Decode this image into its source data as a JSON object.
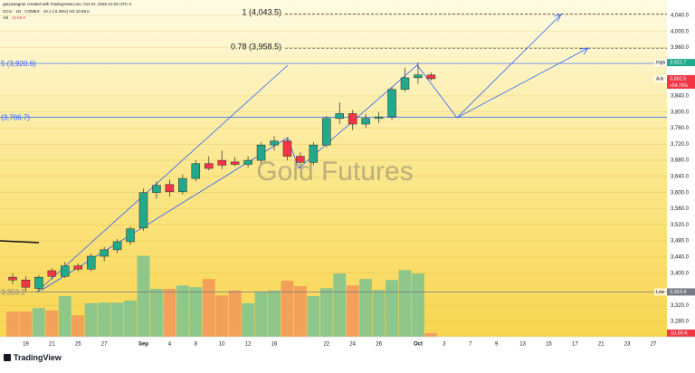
{
  "header": {
    "credit": "garyswagner created with TradingView.com, Oct 01, 2025 21:03 UTC-4",
    "symbol_line": "GC1! · 1D · COMEX · 10.1 (-0.26%) Vol 10.56 K",
    "vol_label": "Vol",
    "vol_value": "10.56 K"
  },
  "footer": {
    "logo": "TradingView"
  },
  "chart_data": {
    "type": "candlestick",
    "watermark": "Gold Futures",
    "categories": [
      null,
      "19",
      null,
      "21",
      null,
      "25",
      null,
      "27",
      null,
      null,
      "Sep",
      null,
      "4",
      null,
      "8",
      null,
      "10",
      null,
      "12",
      null,
      "16",
      null,
      null,
      null,
      "22",
      null,
      "24",
      null,
      "26",
      null,
      null,
      "Oct",
      null,
      "3",
      null,
      "7",
      null,
      "9",
      null,
      "13",
      null,
      "15",
      null,
      "17",
      null,
      "21",
      null,
      "23",
      null,
      "27"
    ],
    "open": [
      3390,
      3383,
      3362,
      3406,
      3392,
      3418,
      3410,
      3442,
      3458,
      3478,
      3512,
      3600,
      3620,
      3602,
      3635,
      3672,
      3680,
      3676,
      3670,
      3680,
      3718,
      3728,
      3690,
      3675,
      3718,
      3784,
      3796,
      3770,
      3784,
      3788,
      3856,
      3885,
      3892,
      null,
      null,
      null,
      null,
      null,
      null,
      null,
      null,
      null,
      null,
      null,
      null,
      null,
      null,
      null,
      null,
      null
    ],
    "high": [
      3400,
      3392,
      3395,
      3412,
      3428,
      3424,
      3448,
      3465,
      3485,
      3515,
      3610,
      3628,
      3632,
      3645,
      3680,
      3690,
      3705,
      3688,
      3690,
      3725,
      3740,
      3735,
      3700,
      3725,
      3790,
      3824,
      3805,
      3795,
      3800,
      3862,
      3910,
      3922.7,
      3898,
      null,
      null,
      null,
      null,
      null,
      null,
      null,
      null,
      null,
      null,
      null,
      null,
      null,
      null,
      null,
      null,
      null
    ],
    "low": [
      3372,
      3355,
      3353.4,
      3385,
      3388,
      3405,
      3405,
      3430,
      3450,
      3470,
      3505,
      3585,
      3590,
      3595,
      3628,
      3655,
      3658,
      3665,
      3662,
      3672,
      3705,
      3680,
      3660,
      3668,
      3712,
      3770,
      3755,
      3760,
      3772,
      3780,
      3850,
      3870,
      3878,
      null,
      null,
      null,
      null,
      null,
      null,
      null,
      null,
      null,
      null,
      null,
      null,
      null,
      null,
      null,
      null,
      null
    ],
    "close": [
      3383,
      3365,
      3390,
      3392,
      3418,
      3410,
      3442,
      3458,
      3478,
      3510,
      3600,
      3618,
      3602,
      3635,
      3672,
      3660,
      3668,
      3670,
      3680,
      3718,
      3728,
      3690,
      3675,
      3718,
      3784,
      3796,
      3770,
      3784,
      3788,
      3856,
      3885,
      3892,
      3882.5,
      null,
      null,
      null,
      null,
      null,
      null,
      null,
      null,
      null,
      null,
      null,
      null,
      null,
      null,
      null,
      null,
      null
    ],
    "volume": [
      74,
      74,
      84,
      77,
      119,
      63,
      98,
      100,
      100,
      106,
      237,
      140,
      140,
      150,
      145,
      169,
      121,
      135,
      98,
      132,
      135,
      164,
      148,
      119,
      142,
      185,
      150,
      169,
      137,
      166,
      195,
      185,
      10.56,
      null,
      null,
      null,
      null,
      null,
      null,
      null,
      null,
      null,
      null,
      null,
      null,
      null,
      null,
      null,
      null,
      null
    ],
    "up_color": "#22a98c",
    "down_color": "#f23645",
    "volume_up_color": "#8fc689",
    "volume_down_color": "#f3a15a",
    "ylim": [
      3242,
      4078
    ],
    "yticks": [
      {
        "value": 4040,
        "label": "4,040.0"
      },
      {
        "value": 4000,
        "label": "4,000.0"
      },
      {
        "value": 3960,
        "label": "3,960.0"
      },
      {
        "value": 3840,
        "label": "3,840.0"
      },
      {
        "value": 3800,
        "label": "3,800.0"
      },
      {
        "value": 3760,
        "label": "3,760.0"
      },
      {
        "value": 3720,
        "label": "3,720.0"
      },
      {
        "value": 3680,
        "label": "3,680.0"
      },
      {
        "value": 3640,
        "label": "3,640.0"
      },
      {
        "value": 3600,
        "label": "3,600.0"
      },
      {
        "value": 3560,
        "label": "3,560.0"
      },
      {
        "value": 3520,
        "label": "3,520.0"
      },
      {
        "value": 3480,
        "label": "3,480.0"
      },
      {
        "value": 3440,
        "label": "3,440.0"
      },
      {
        "value": 3400,
        "label": "3,400.0"
      },
      {
        "value": 3320,
        "label": "3,320.0"
      },
      {
        "value": 3280,
        "label": "3,280.0"
      }
    ],
    "vlim": [
      0,
      270
    ],
    "grid": true,
    "levels": [
      {
        "value": 4043.5,
        "label": "1 (4,043.5)",
        "style": "dashed",
        "color": "#333333"
      },
      {
        "value": 3958.5,
        "label": "0.78 (3,958.5)",
        "style": "dashed",
        "color": "#333333"
      },
      {
        "value": 3920.6,
        "label": "5 (3,920.6)",
        "style": "solid",
        "color": "#2962ff"
      },
      {
        "value": 3786.7,
        "label": "(3,786.7)",
        "style": "solid",
        "color": "#2962ff"
      },
      {
        "value": 3353.2,
        "label": "3,353.2",
        "style": "solid",
        "color": "#787b86"
      }
    ],
    "price_labels": [
      {
        "name": "High",
        "value": 3922.7,
        "label": "3,922.7",
        "color": "#22a98c"
      },
      {
        "name": "Ask",
        "value": 3882.5,
        "label": "3,882.5",
        "note": "+54.76%",
        "color": "#f23645"
      },
      {
        "name": "Low",
        "value": 3353.4,
        "label": "3,353.4",
        "color": "#787b86"
      }
    ],
    "volume_label": {
      "value": 10.56,
      "label": "10.56 K",
      "color": "#f23645"
    }
  }
}
